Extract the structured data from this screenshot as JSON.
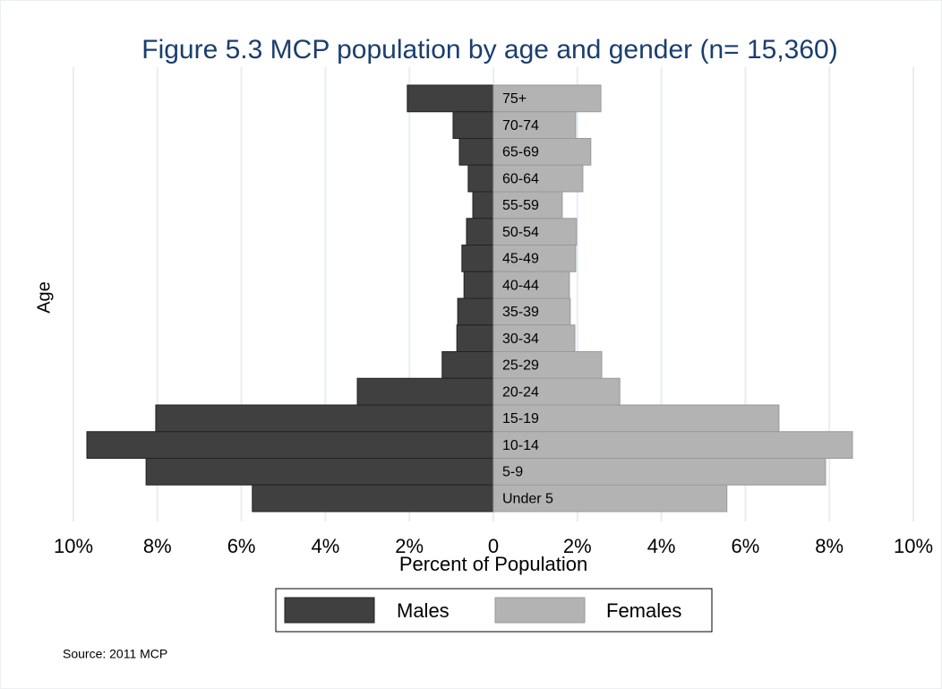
{
  "chart_data": {
    "type": "pyramid",
    "title": "Figure 5.3 MCP population by age and gender (n= 15,360)",
    "x_label": "Percent of Population",
    "y_label": "Age",
    "source": "Source:  2011 MCP",
    "categories": [
      "75+",
      "70-74",
      "65-69",
      "60-64",
      "55-59",
      "50-54",
      "45-49",
      "40-44",
      "35-39",
      "30-34",
      "25-29",
      "20-24",
      "15-19",
      "10-14",
      "5-9",
      "Under 5"
    ],
    "series": [
      {
        "name": "Males",
        "color": "#404040",
        "side": "left",
        "values": [
          2.05,
          0.96,
          0.81,
          0.6,
          0.49,
          0.64,
          0.75,
          0.7,
          0.85,
          0.87,
          1.22,
          3.24,
          8.04,
          9.68,
          8.27,
          5.74
        ]
      },
      {
        "name": "Females",
        "color": "#b3b3b3",
        "side": "right",
        "values": [
          2.56,
          1.96,
          2.32,
          2.13,
          1.64,
          1.98,
          1.96,
          1.81,
          1.83,
          1.94,
          2.58,
          3.01,
          6.8,
          8.55,
          7.91,
          5.56
        ]
      }
    ],
    "xlim": [
      -10,
      10
    ],
    "xticks": [
      {
        "value": -10,
        "label": "10%"
      },
      {
        "value": -8,
        "label": "8%"
      },
      {
        "value": -6,
        "label": "6%"
      },
      {
        "value": -4,
        "label": "4%"
      },
      {
        "value": -2,
        "label": "2%"
      },
      0,
      {
        "value": 2,
        "label": "2%"
      },
      {
        "value": 4,
        "label": "4%"
      },
      {
        "value": 6,
        "label": "6%"
      },
      {
        "value": 8,
        "label": "8%"
      },
      {
        "value": 10,
        "label": "10%"
      }
    ],
    "grid": true
  }
}
